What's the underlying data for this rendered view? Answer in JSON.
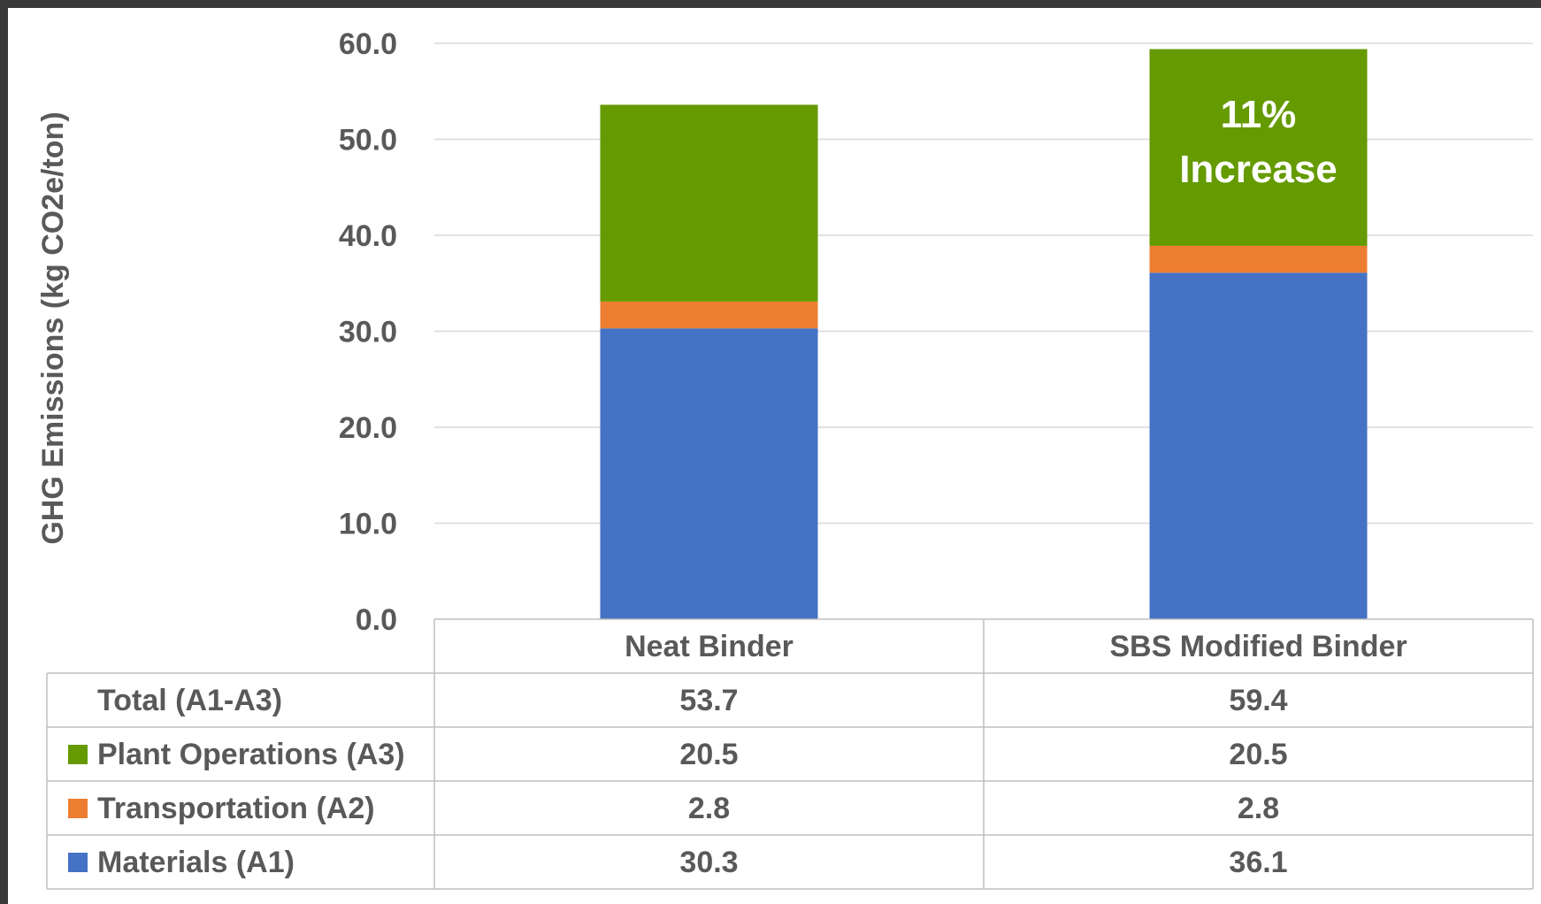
{
  "chart_data": {
    "type": "bar",
    "stacked": true,
    "categories": [
      "Neat Binder",
      "SBS Modified Binder"
    ],
    "series": [
      {
        "name": "Materials (A1)",
        "values": [
          30.3,
          36.1
        ],
        "color": "#4472C4"
      },
      {
        "name": "Transportation (A2)",
        "values": [
          2.8,
          2.8
        ],
        "color": "#ED7D31"
      },
      {
        "name": "Plant Operations (A3)",
        "values": [
          20.5,
          20.5
        ],
        "color": "#659A00"
      }
    ],
    "totals": {
      "label": "Total (A1-A3)",
      "values": [
        53.7,
        59.4
      ]
    },
    "ylabel": "GHG Emissions (kg CO2e/ton)",
    "ylim": [
      0,
      60
    ],
    "yticks": [
      "0.0",
      "10.0",
      "20.0",
      "30.0",
      "40.0",
      "50.0",
      "60.0"
    ],
    "grid": true,
    "data_table": {
      "rows": [
        {
          "label": "Total (A1-A3)",
          "values": [
            "53.7",
            "59.4"
          ],
          "legend_key": false
        },
        {
          "label": "Plant Operations (A3)",
          "values": [
            "20.5",
            "20.5"
          ],
          "legend_key": true,
          "color": "#659A00"
        },
        {
          "label": "Transportation (A2)",
          "values": [
            "2.8",
            "2.8"
          ],
          "legend_key": true,
          "color": "#ED7D31"
        },
        {
          "label": "Materials (A1)",
          "values": [
            "30.3",
            "36.1"
          ],
          "legend_key": true,
          "color": "#4472C4"
        }
      ]
    },
    "annotations": [
      {
        "category": "SBS Modified Binder",
        "lines": [
          "11%",
          "Increase"
        ]
      }
    ]
  }
}
